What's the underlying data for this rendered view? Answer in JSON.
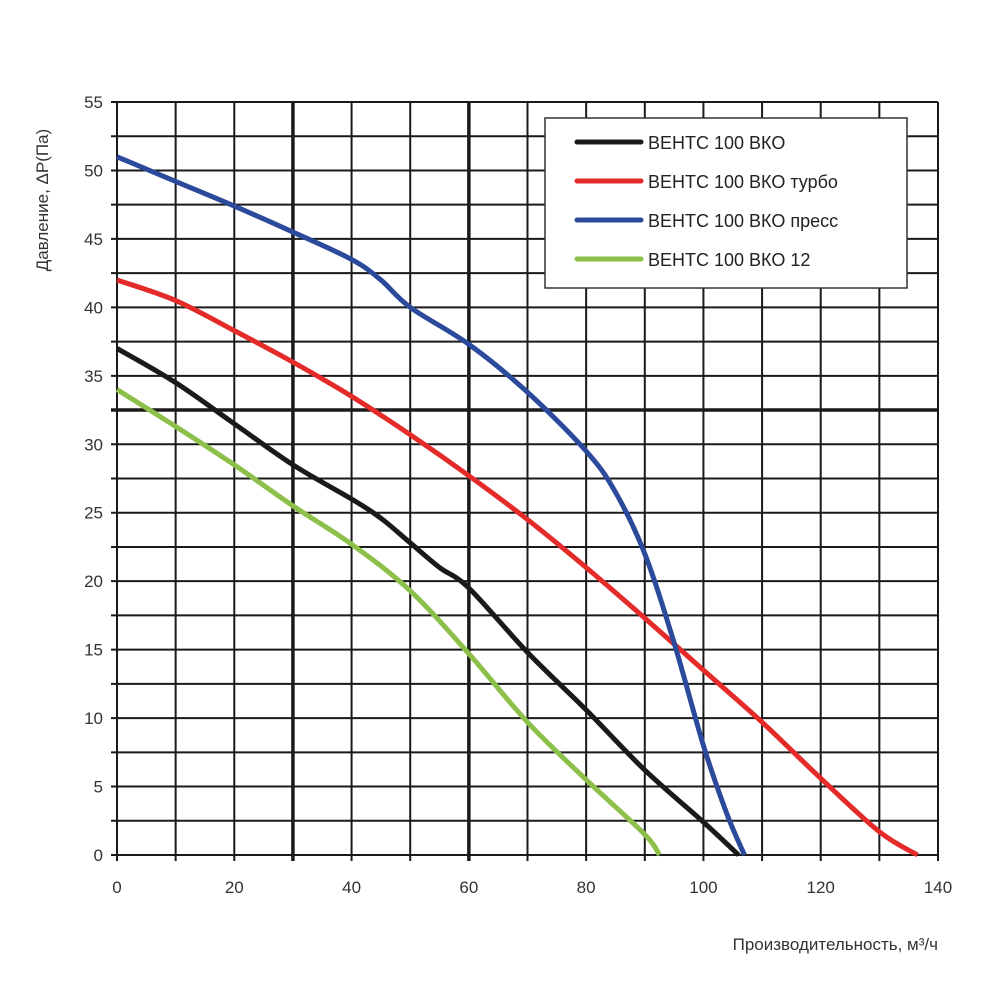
{
  "chart_data": {
    "type": "line",
    "title": "",
    "xlabel": "Производительность, м³/ч",
    "ylabel": "Давление, ΔP(Па)",
    "xlim": [
      0,
      140
    ],
    "ylim": [
      0,
      55
    ],
    "xticks": [
      "0",
      "20",
      "40",
      "60",
      "80",
      "100",
      "120",
      "140"
    ],
    "yticks": [
      "0",
      "5",
      "10",
      "15",
      "20",
      "25",
      "30",
      "35",
      "40",
      "45",
      "50",
      "55"
    ],
    "grid": true,
    "legend_position": "top-right",
    "series": [
      {
        "name": "ВЕНТС 100 ВКО",
        "color": "#1a1a1a",
        "x": [
          0,
          10,
          20,
          30,
          40,
          45,
          50,
          55,
          60,
          70,
          80,
          90,
          100,
          106
        ],
        "y": [
          37,
          34.5,
          31.5,
          28.5,
          26,
          24.6,
          22.8,
          21,
          19.5,
          14.8,
          10.6,
          6.2,
          2.4,
          0
        ]
      },
      {
        "name": "ВЕНТС 100 ВКО турбо",
        "color": "#e52a2a",
        "x": [
          0,
          10,
          20,
          30,
          40,
          50,
          60,
          70,
          80,
          90,
          100,
          110,
          120,
          130,
          136.5
        ],
        "y": [
          42,
          40.5,
          38.3,
          36,
          33.5,
          30.7,
          27.7,
          24.5,
          21,
          17.3,
          13.5,
          9.7,
          5.6,
          1.7,
          0
        ]
      },
      {
        "name": "ВЕНТС 100 ВКО пресс",
        "color": "#2b4a9b",
        "x": [
          0,
          10,
          20,
          30,
          40,
          45,
          50,
          60,
          70,
          80,
          85,
          90,
          95,
          100,
          104,
          107
        ],
        "y": [
          51,
          49.2,
          47.4,
          45.5,
          43.5,
          42,
          40,
          37.3,
          33.8,
          29.5,
          26.5,
          22,
          15.5,
          8,
          3,
          0
        ]
      },
      {
        "name": "ВЕНТС 100 ВКО 12",
        "color": "#8cc04a",
        "x": [
          0,
          10,
          20,
          30,
          40,
          50,
          60,
          70,
          80,
          90,
          92.5
        ],
        "y": [
          34,
          31.3,
          28.5,
          25.5,
          22.7,
          19.3,
          14.7,
          9.7,
          5.5,
          1.5,
          0
        ]
      }
    ]
  }
}
